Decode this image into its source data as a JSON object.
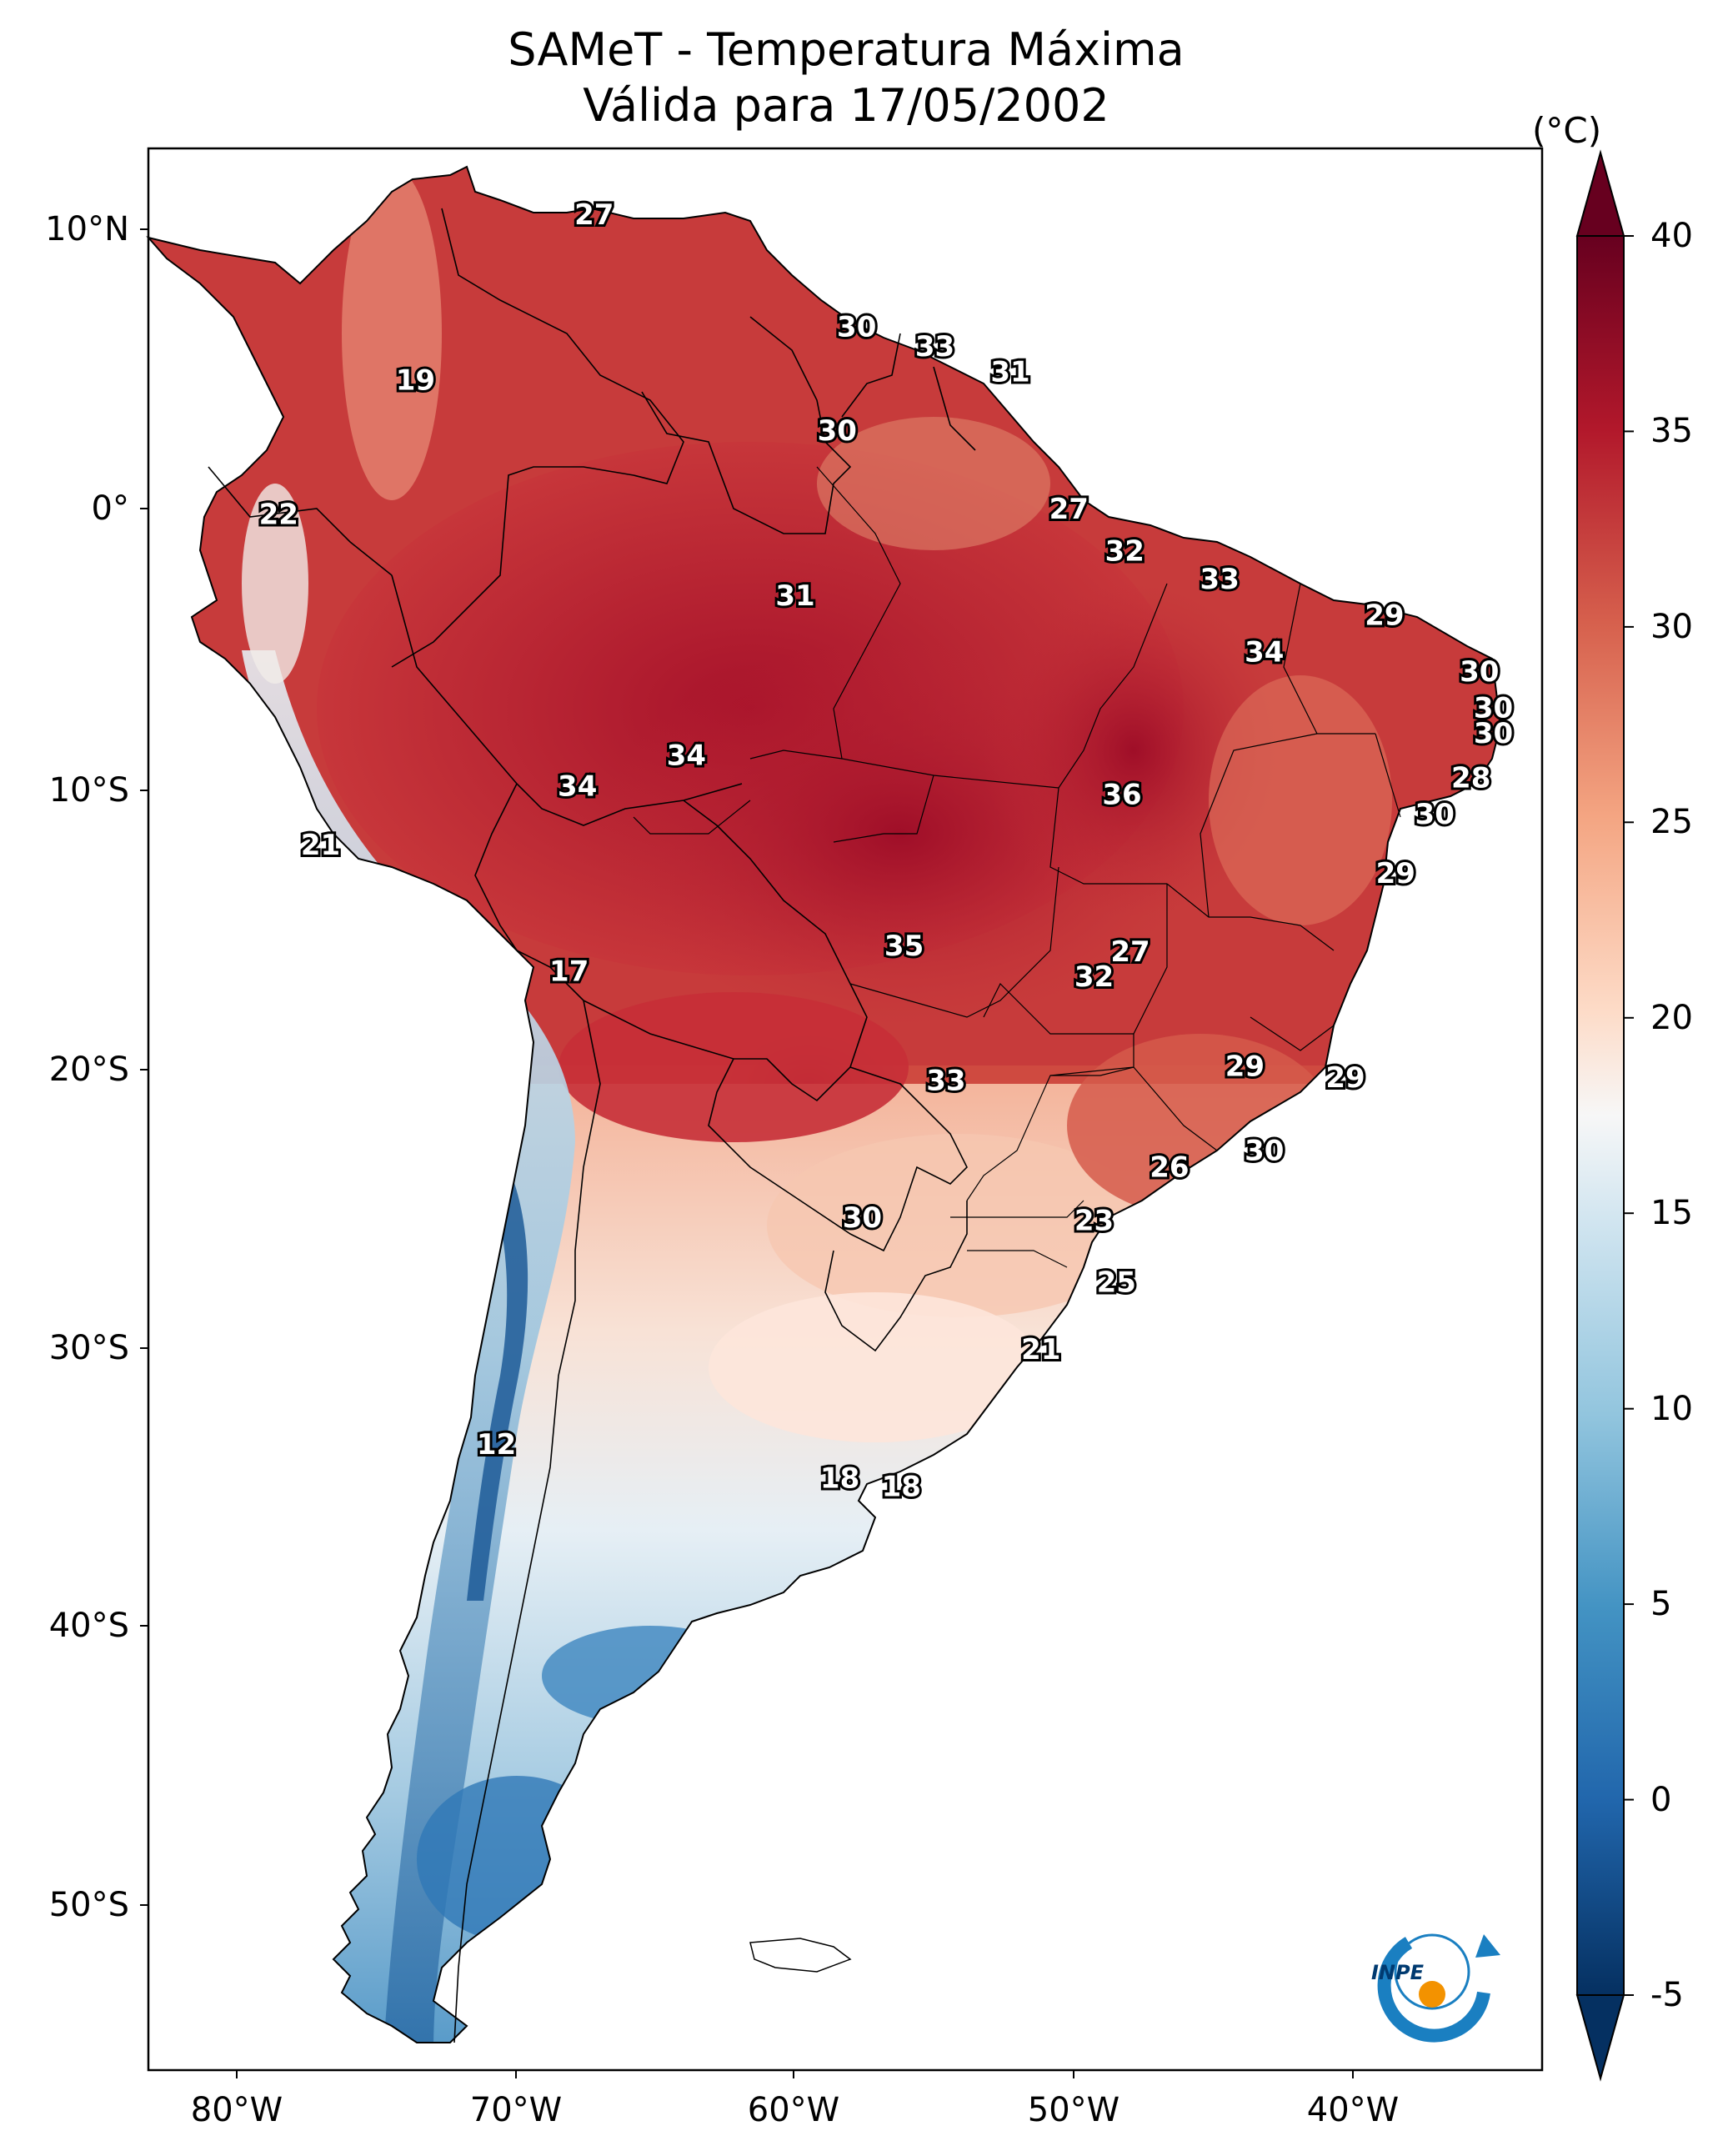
{
  "title_line1": "SAMeT - Temperatura Máxima",
  "title_line2": "Válida para 17/05/2002",
  "colorbar": {
    "unit": "(°C)",
    "ticks": [
      "-5",
      "0",
      "5",
      "10",
      "15",
      "20",
      "25",
      "30",
      "35",
      "40"
    ],
    "colors": [
      "#053061",
      "#2166ac",
      "#4393c3",
      "#92c5de",
      "#d1e5f0",
      "#f7f7f7",
      "#fddbc7",
      "#f4a582",
      "#d6604d",
      "#b2182b",
      "#67001f"
    ]
  },
  "lat_labels": [
    "10°N",
    "0°",
    "10°S",
    "20°S",
    "30°S",
    "40°S",
    "50°S"
  ],
  "lon_labels": [
    "80°W",
    "70°W",
    "60°W",
    "50°W",
    "40°W"
  ],
  "logo_text": "INPE",
  "chart_data": {
    "type": "heatmap",
    "title": "SAMeT - Temperatura Máxima Válida para 17/05/2002",
    "units": "°C",
    "color_range": [
      -5,
      40
    ],
    "lon_range": [
      -83,
      -33
    ],
    "lat_range": [
      -57,
      13
    ],
    "point_labels": [
      {
        "lon": -67.2,
        "lat": 10.5,
        "value": "27"
      },
      {
        "lon": -57.8,
        "lat": 6.5,
        "value": "30"
      },
      {
        "lon": -55.0,
        "lat": 5.8,
        "value": "33"
      },
      {
        "lon": -52.3,
        "lat": 4.9,
        "value": "31"
      },
      {
        "lon": -73.6,
        "lat": 4.6,
        "value": "19"
      },
      {
        "lon": -58.5,
        "lat": 2.8,
        "value": "30"
      },
      {
        "lon": -78.5,
        "lat": -0.2,
        "value": "22"
      },
      {
        "lon": -50.2,
        "lat": 0.0,
        "value": "27"
      },
      {
        "lon": -48.2,
        "lat": -1.5,
        "value": "32"
      },
      {
        "lon": -44.8,
        "lat": -2.5,
        "value": "33"
      },
      {
        "lon": -60.0,
        "lat": -3.1,
        "value": "31"
      },
      {
        "lon": -38.9,
        "lat": -3.8,
        "value": "29"
      },
      {
        "lon": -43.2,
        "lat": -5.1,
        "value": "34"
      },
      {
        "lon": -35.5,
        "lat": -5.8,
        "value": "30"
      },
      {
        "lon": -35.0,
        "lat": -7.1,
        "value": "30"
      },
      {
        "lon": -35.0,
        "lat": -8.0,
        "value": "30"
      },
      {
        "lon": -35.8,
        "lat": -9.6,
        "value": "28"
      },
      {
        "lon": -63.9,
        "lat": -8.8,
        "value": "34"
      },
      {
        "lon": -67.8,
        "lat": -9.9,
        "value": "34"
      },
      {
        "lon": -48.3,
        "lat": -10.2,
        "value": "36"
      },
      {
        "lon": -37.1,
        "lat": -10.9,
        "value": "30"
      },
      {
        "lon": -77.0,
        "lat": -12.0,
        "value": "21"
      },
      {
        "lon": -38.5,
        "lat": -13.0,
        "value": "29"
      },
      {
        "lon": -48.0,
        "lat": -15.8,
        "value": "27"
      },
      {
        "lon": -56.1,
        "lat": -15.6,
        "value": "35"
      },
      {
        "lon": -49.3,
        "lat": -16.7,
        "value": "32"
      },
      {
        "lon": -68.1,
        "lat": -16.5,
        "value": "17"
      },
      {
        "lon": -43.9,
        "lat": -19.9,
        "value": "29"
      },
      {
        "lon": -40.3,
        "lat": -20.3,
        "value": "29"
      },
      {
        "lon": -54.6,
        "lat": -20.4,
        "value": "33"
      },
      {
        "lon": -43.2,
        "lat": -22.9,
        "value": "30"
      },
      {
        "lon": -46.6,
        "lat": -23.5,
        "value": "26"
      },
      {
        "lon": -57.6,
        "lat": -25.3,
        "value": "30"
      },
      {
        "lon": -49.3,
        "lat": -25.4,
        "value": "23"
      },
      {
        "lon": -48.5,
        "lat": -27.6,
        "value": "25"
      },
      {
        "lon": -51.2,
        "lat": -30.0,
        "value": "21"
      },
      {
        "lon": -70.7,
        "lat": -33.4,
        "value": "12"
      },
      {
        "lon": -58.4,
        "lat": -34.6,
        "value": "18"
      },
      {
        "lon": -56.2,
        "lat": -34.9,
        "value": "18"
      }
    ]
  }
}
